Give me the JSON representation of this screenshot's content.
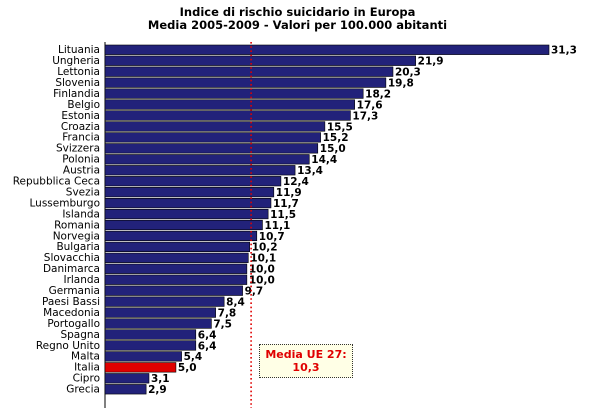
{
  "chart_data": {
    "type": "bar",
    "orientation": "horizontal",
    "title": "Indice di rischio suicidario in Europa",
    "subtitle": "Media 2005-2009 - Valori per 100.000 abitanti",
    "categories": [
      "Lituania",
      "Ungheria",
      "Lettonia",
      "Slovenia",
      "Finlandia",
      "Belgio",
      "Estonia",
      "Croazia",
      "Francia",
      "Svizzera",
      "Polonia",
      "Austria",
      "Repubblica Ceca",
      "Svezia",
      "Lussemburgo",
      "Islanda",
      "Romania",
      "Norvegia",
      "Bulgaria",
      "Slovacchia",
      "Danimarca",
      "Irlanda",
      "Germania",
      "Paesi Bassi",
      "Macedonia",
      "Portogallo",
      "Spagna",
      "Regno Unito",
      "Malta",
      "Italia",
      "Cipro",
      "Grecia"
    ],
    "values": [
      31.3,
      21.9,
      20.3,
      19.8,
      18.2,
      17.6,
      17.3,
      15.5,
      15.2,
      15.0,
      14.4,
      13.4,
      12.4,
      11.9,
      11.7,
      11.5,
      11.1,
      10.7,
      10.2,
      10.1,
      10.0,
      10.0,
      9.7,
      8.4,
      7.8,
      7.5,
      6.4,
      6.4,
      5.4,
      5.0,
      3.1,
      2.9
    ],
    "value_labels": [
      "31,3",
      "21,9",
      "20,3",
      "19,8",
      "18,2",
      "17,6",
      "17,3",
      "15,5",
      "15,2",
      "15,0",
      "14,4",
      "13,4",
      "12,4",
      "11,9",
      "11,7",
      "11,5",
      "11,1",
      "10,7",
      "10,2",
      "10,1",
      "10,0",
      "10,0",
      "9,7",
      "8,4",
      "7,8",
      "7,5",
      "6,4",
      "6,4",
      "5,4",
      "5,0",
      "3,1",
      "2,9"
    ],
    "highlight_category": "Italia",
    "bar_color": "#22227a",
    "highlight_color": "#e00000",
    "reference_line": {
      "value": 10.3,
      "color": "#e00000",
      "style": "dotted"
    },
    "annotation": {
      "line1": "Media UE 27:",
      "line2": "10,3"
    },
    "xlim": [
      0,
      31.3
    ],
    "grid": false,
    "legend": "none"
  }
}
